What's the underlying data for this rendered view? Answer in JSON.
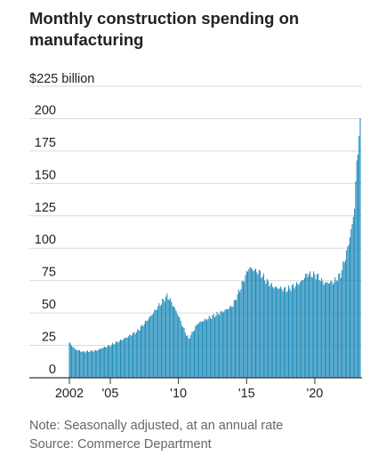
{
  "chart_data": {
    "type": "bar",
    "title": "Monthly construction spending on manufacturing",
    "y_unit_label": "$225 billion",
    "ylim": [
      0,
      225
    ],
    "y_ticks": [
      "225",
      "200",
      "175",
      "150",
      "125",
      "100",
      "75",
      "50",
      "25",
      "0"
    ],
    "x_ticks": [
      {
        "label": "2002",
        "year": 2002
      },
      {
        "label": "'05",
        "year": 2005
      },
      {
        "label": "'10",
        "year": 2010
      },
      {
        "label": "'15",
        "year": 2015
      },
      {
        "label": "'20",
        "year": 2020
      }
    ],
    "x_start": "2002-01",
    "x_end": "2023-05",
    "series": [
      {
        "color": "#1a89b8",
        "anchors": [
          {
            "date": "2002-01",
            "value": 27
          },
          {
            "date": "2002-06",
            "value": 22
          },
          {
            "date": "2003-01",
            "value": 20
          },
          {
            "date": "2004-01",
            "value": 21
          },
          {
            "date": "2004-06",
            "value": 23
          },
          {
            "date": "2005-01",
            "value": 25
          },
          {
            "date": "2006-01",
            "value": 30
          },
          {
            "date": "2007-01",
            "value": 36
          },
          {
            "date": "2008-01",
            "value": 48
          },
          {
            "date": "2008-09",
            "value": 57
          },
          {
            "date": "2009-03",
            "value": 63
          },
          {
            "date": "2009-06",
            "value": 60
          },
          {
            "date": "2010-01",
            "value": 48
          },
          {
            "date": "2010-06",
            "value": 37
          },
          {
            "date": "2010-10",
            "value": 30
          },
          {
            "date": "2011-06",
            "value": 42
          },
          {
            "date": "2012-06",
            "value": 47
          },
          {
            "date": "2013-06",
            "value": 52
          },
          {
            "date": "2014-01",
            "value": 56
          },
          {
            "date": "2014-08",
            "value": 70
          },
          {
            "date": "2015-03",
            "value": 85
          },
          {
            "date": "2016-01",
            "value": 81
          },
          {
            "date": "2016-06",
            "value": 75
          },
          {
            "date": "2017-01",
            "value": 70
          },
          {
            "date": "2018-01",
            "value": 68
          },
          {
            "date": "2019-01",
            "value": 74
          },
          {
            "date": "2019-06",
            "value": 80
          },
          {
            "date": "2020-03",
            "value": 79
          },
          {
            "date": "2020-09",
            "value": 73
          },
          {
            "date": "2021-06",
            "value": 74
          },
          {
            "date": "2021-12",
            "value": 80
          },
          {
            "date": "2022-06",
            "value": 100
          },
          {
            "date": "2022-10",
            "value": 118
          },
          {
            "date": "2022-12",
            "value": 132
          },
          {
            "date": "2023-01",
            "value": 150
          },
          {
            "date": "2023-02",
            "value": 165
          },
          {
            "date": "2023-03",
            "value": 176
          },
          {
            "date": "2023-04",
            "value": 189
          },
          {
            "date": "2023-05",
            "value": 194
          }
        ]
      }
    ]
  },
  "notes": {
    "line1": "Note: Seasonally adjusted, at an annual rate",
    "line2": "Source: Commerce Department"
  },
  "colors": {
    "bar": "#1a89b8",
    "grid": "#d9d9d9",
    "axis": "#333333",
    "text": "#222222",
    "muted": "#666666"
  }
}
